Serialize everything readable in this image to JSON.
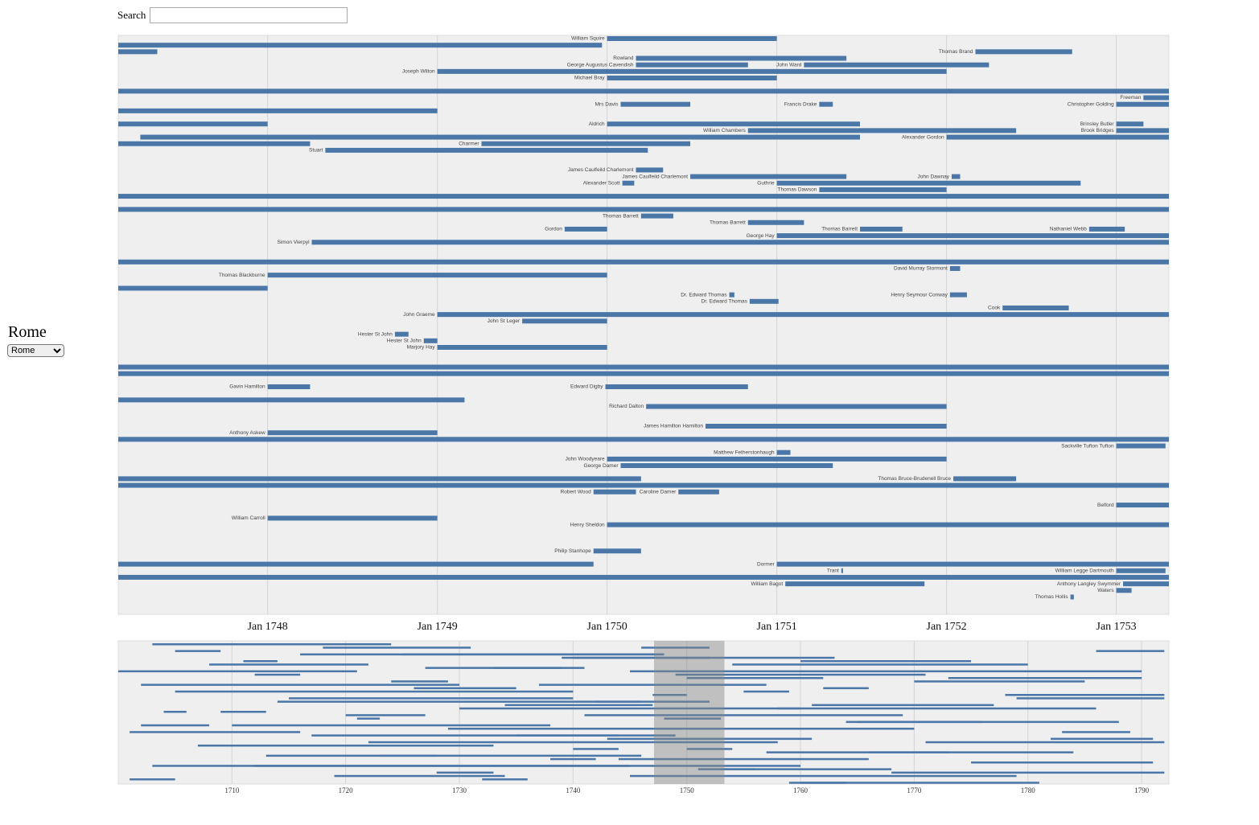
{
  "search_label": "Search",
  "location": {
    "title": "Rome",
    "selected": "Rome"
  },
  "timeline": {
    "color": "#4a77a8",
    "xlim": [
      1747.12,
      1753.31
    ],
    "xticks": [
      {
        "value": 1748,
        "label": "Jan 1748"
      },
      {
        "value": 1749,
        "label": "Jan 1749"
      },
      {
        "value": 1750,
        "label": "Jan 1750"
      },
      {
        "value": 1751,
        "label": "Jan 1751"
      },
      {
        "value": 1752,
        "label": "Jan 1752"
      },
      {
        "value": 1753,
        "label": "Jan 1753"
      }
    ],
    "rows": [
      [
        {
          "label": "William Squire",
          "start": 1750.0,
          "end": 1751.0
        }
      ],
      [
        {
          "start": 1747.12,
          "end": 1749.97
        }
      ],
      [
        {
          "start": 1747.12,
          "end": 1747.35
        },
        {
          "label": "Thomas Brand",
          "start": 1752.17,
          "end": 1752.74
        }
      ],
      [
        {
          "label": "Rowland",
          "start": 1750.17,
          "end": 1751.41
        }
      ],
      [
        {
          "label": "George Augustus Cavendish",
          "start": 1750.17,
          "end": 1750.83
        },
        {
          "label": "John Ward",
          "start": 1751.16,
          "end": 1752.25
        }
      ],
      [
        {
          "label": "Joseph Wilton",
          "start": 1749.0,
          "end": 1752.0
        }
      ],
      [
        {
          "label": "Michael Bray",
          "start": 1750.0,
          "end": 1751.0
        }
      ],
      [],
      [
        {
          "start": 1747.12,
          "end": 1753.31
        }
      ],
      [
        {
          "label": "Freeman",
          "start": 1753.16,
          "end": 1753.31
        }
      ],
      [
        {
          "label": "Mrs Davis",
          "start": 1750.08,
          "end": 1750.49
        },
        {
          "label": "Francis Drake",
          "start": 1751.25,
          "end": 1751.33
        },
        {
          "label": "Christopher Golding",
          "start": 1753.0,
          "end": 1753.31
        }
      ],
      [
        {
          "start": 1747.12,
          "end": 1749.0
        }
      ],
      [],
      [
        {
          "start": 1747.12,
          "end": 1748.0
        },
        {
          "label": "Aldrich",
          "start": 1750.0,
          "end": 1751.49
        },
        {
          "label": "Brinsley Butler",
          "start": 1753.0,
          "end": 1753.16
        }
      ],
      [
        {
          "label": "William Chambers",
          "start": 1750.83,
          "end": 1752.41
        },
        {
          "label": "Brook Bridges",
          "start": 1753.0,
          "end": 1753.31
        }
      ],
      [
        {
          "start": 1747.25,
          "end": 1751.49
        },
        {
          "label": "Alexander Gordon",
          "start": 1752.0,
          "end": 1753.31
        }
      ],
      [
        {
          "start": 1747.12,
          "end": 1748.25
        },
        {
          "label": "Charmer",
          "start": 1749.26,
          "end": 1750.49
        }
      ],
      [
        {
          "label": "Stuart",
          "start": 1748.34,
          "end": 1750.24
        }
      ],
      [],
      [],
      [
        {
          "label": "James Caulfeild Charlemont",
          "start": 1750.17,
          "end": 1750.33
        }
      ],
      [
        {
          "label": "James Caulfeild Charlemont",
          "start": 1750.49,
          "end": 1751.41
        },
        {
          "label": "John Dawnay",
          "start": 1752.03,
          "end": 1752.08
        }
      ],
      [
        {
          "label": "Alexander Scott",
          "start": 1750.09,
          "end": 1750.16
        },
        {
          "label": "Guthrie",
          "start": 1751.0,
          "end": 1752.79
        }
      ],
      [
        {
          "label": "Thomas Dawson",
          "start": 1751.25,
          "end": 1752.0
        }
      ],
      [
        {
          "start": 1747.12,
          "end": 1753.31
        }
      ],
      [],
      [
        {
          "start": 1747.12,
          "end": 1753.31
        }
      ],
      [
        {
          "label": "Thomas Barrett",
          "start": 1750.2,
          "end": 1750.39
        }
      ],
      [
        {
          "label": "Thomas Barrett",
          "start": 1750.83,
          "end": 1751.16
        }
      ],
      [
        {
          "label": "Gordon",
          "start": 1749.75,
          "end": 1750.0
        },
        {
          "label": "Thomas Barrett",
          "start": 1751.49,
          "end": 1751.74
        },
        {
          "label": "Nathaniel Webb",
          "start": 1752.84,
          "end": 1753.05
        }
      ],
      [
        {
          "label": "George Hay",
          "start": 1751.0,
          "end": 1753.31
        }
      ],
      [
        {
          "label": "Simon Vierpyl",
          "start": 1748.26,
          "end": 1753.31
        }
      ],
      [],
      [],
      [
        {
          "start": 1747.12,
          "end": 1753.31
        }
      ],
      [
        {
          "label": "David Murray Stormont",
          "start": 1752.02,
          "end": 1752.08
        }
      ],
      [
        {
          "label": "Thomas Blackburne",
          "start": 1748.0,
          "end": 1750.0
        }
      ],
      [],
      [
        {
          "start": 1747.12,
          "end": 1748.0
        }
      ],
      [
        {
          "label": "Dr. Edward Thomas",
          "start": 1750.72,
          "end": 1750.75
        },
        {
          "label": "Henry Seymour Conway",
          "start": 1752.02,
          "end": 1752.12
        }
      ],
      [
        {
          "label": "Dr. Edward Thomas",
          "start": 1750.84,
          "end": 1751.01
        }
      ],
      [
        {
          "label": "Cook",
          "start": 1752.33,
          "end": 1752.72
        }
      ],
      [
        {
          "label": "John Graeme",
          "start": 1749.0,
          "end": 1753.31
        }
      ],
      [
        {
          "label": "John St Leger",
          "start": 1749.5,
          "end": 1750.0
        }
      ],
      [],
      [
        {
          "label": "Hester St John",
          "start": 1748.75,
          "end": 1748.83
        }
      ],
      [
        {
          "label": "Hester St John",
          "start": 1748.92,
          "end": 1749.0
        }
      ],
      [
        {
          "label": "Marjory Hay",
          "start": 1749.0,
          "end": 1750.0
        }
      ],
      [],
      [],
      [
        {
          "start": 1747.12,
          "end": 1753.31
        }
      ],
      [
        {
          "start": 1747.12,
          "end": 1753.31
        }
      ],
      [],
      [
        {
          "label": "Gavin Hamilton",
          "start": 1748.0,
          "end": 1748.25
        },
        {
          "label": "Edward Digby",
          "start": 1749.99,
          "end": 1750.83
        }
      ],
      [],
      [
        {
          "start": 1747.12,
          "end": 1749.16
        }
      ],
      [
        {
          "label": "Richard Dalton",
          "start": 1750.23,
          "end": 1752.0
        }
      ],
      [],
      [],
      [
        {
          "label": "James Hamilton Hamilton",
          "start": 1750.58,
          "end": 1752.0
        }
      ],
      [
        {
          "label": "Anthony Askew",
          "start": 1748.0,
          "end": 1749.0
        }
      ],
      [
        {
          "start": 1747.12,
          "end": 1753.31
        }
      ],
      [
        {
          "label": "Sackville Tufton Tufton",
          "start": 1753.0,
          "end": 1753.29
        }
      ],
      [
        {
          "label": "Matthew Fetherstonhaugh",
          "start": 1751.0,
          "end": 1751.08
        }
      ],
      [
        {
          "label": "John Woodyeare",
          "start": 1750.0,
          "end": 1752.0
        }
      ],
      [
        {
          "label": "George Damer",
          "start": 1750.08,
          "end": 1751.33
        }
      ],
      [],
      [
        {
          "start": 1747.12,
          "end": 1750.2
        },
        {
          "label": "Thomas Bruce-Brudenell Bruce",
          "start": 1752.04,
          "end": 1752.41
        }
      ],
      [
        {
          "start": 1747.12,
          "end": 1753.31
        }
      ],
      [
        {
          "label": "Robert Wood",
          "start": 1749.92,
          "end": 1750.17
        },
        {
          "label": "Caroline Damer",
          "start": 1750.42,
          "end": 1750.66
        }
      ],
      [],
      [
        {
          "label": "Belford",
          "start": 1753.0,
          "end": 1753.31
        }
      ],
      [],
      [
        {
          "label": "William Carroll",
          "start": 1748.0,
          "end": 1749.0
        }
      ],
      [
        {
          "label": "Henry Sheldon",
          "start": 1750.0,
          "end": 1753.31
        }
      ],
      [],
      [],
      [],
      [
        {
          "label": "Philip Stanhope",
          "start": 1749.92,
          "end": 1750.2
        }
      ],
      [],
      [
        {
          "start": 1747.12,
          "end": 1749.92
        },
        {
          "label": "Dormer",
          "start": 1751.0,
          "end": 1753.31
        }
      ],
      [
        {
          "label": "Trant",
          "start": 1751.38,
          "end": 1751.39
        },
        {
          "label": "William Legge Dartmouth",
          "start": 1753.0,
          "end": 1753.29
        }
      ],
      [
        {
          "start": 1747.12,
          "end": 1753.31
        }
      ],
      [
        {
          "label": "William Bagot",
          "start": 1751.05,
          "end": 1751.87
        },
        {
          "label": "Anthony Langley Swymmer",
          "start": 1753.04,
          "end": 1753.31
        }
      ],
      [
        {
          "label": "Waters",
          "start": 1753.0,
          "end": 1753.09
        }
      ],
      [
        {
          "label": "Thomas Hollis",
          "start": 1752.73,
          "end": 1752.75
        }
      ]
    ]
  },
  "overview": {
    "xlim": [
      1700,
      1792.4
    ],
    "xticks": [
      1710,
      1720,
      1730,
      1740,
      1750,
      1760,
      1770,
      1780,
      1790
    ],
    "spans": [
      [
        1703,
        1712
      ],
      [
        1718,
        1731
      ],
      [
        1705,
        1709
      ],
      [
        1725,
        1748
      ],
      [
        1740,
        1752
      ],
      [
        1760,
        1775
      ],
      [
        1708,
        1722
      ],
      [
        1733,
        1741
      ],
      [
        1745,
        1790
      ],
      [
        1712,
        1716
      ],
      [
        1750,
        1762
      ],
      [
        1770,
        1785
      ],
      [
        1702,
        1730
      ],
      [
        1726,
        1735
      ],
      [
        1755,
        1759
      ],
      [
        1778,
        1792
      ],
      [
        1715,
        1740
      ],
      [
        1742,
        1746
      ],
      [
        1761,
        1777
      ],
      [
        1730,
        1760
      ],
      [
        1704,
        1706
      ],
      [
        1720,
        1727
      ],
      [
        1748,
        1753
      ],
      [
        1765,
        1788
      ],
      [
        1710,
        1738
      ],
      [
        1752,
        1770
      ],
      [
        1701,
        1716
      ],
      [
        1735,
        1749
      ],
      [
        1782,
        1791
      ],
      [
        1722,
        1758
      ],
      [
        1707,
        1719
      ],
      [
        1740,
        1744
      ],
      [
        1757,
        1773
      ],
      [
        1713,
        1728
      ],
      [
        1744,
        1766
      ],
      [
        1775,
        1783
      ],
      [
        1703,
        1745
      ],
      [
        1751,
        1756
      ],
      [
        1768,
        1792
      ],
      [
        1719,
        1734
      ],
      [
        1732,
        1736
      ],
      [
        1760,
        1781
      ],
      [
        1706,
        1724
      ],
      [
        1746,
        1752
      ],
      [
        1786,
        1792
      ],
      [
        1716,
        1748
      ],
      [
        1739,
        1763
      ],
      [
        1711,
        1714
      ],
      [
        1754,
        1780
      ],
      [
        1727,
        1739
      ],
      [
        1700,
        1721
      ],
      [
        1749,
        1771
      ],
      [
        1773,
        1790
      ],
      [
        1724,
        1729
      ],
      [
        1737,
        1757
      ],
      [
        1762,
        1766
      ],
      [
        1705,
        1740
      ],
      [
        1747,
        1750
      ],
      [
        1779,
        1792
      ],
      [
        1714,
        1752
      ],
      [
        1734,
        1747
      ],
      [
        1758,
        1786
      ],
      [
        1709,
        1713
      ],
      [
        1741,
        1769
      ],
      [
        1721,
        1723
      ],
      [
        1764,
        1776
      ],
      [
        1702,
        1708
      ],
      [
        1729,
        1755
      ],
      [
        1783,
        1789
      ],
      [
        1717,
        1744
      ],
      [
        1743,
        1761
      ],
      [
        1771,
        1792
      ],
      [
        1708,
        1733
      ],
      [
        1750,
        1754
      ],
      [
        1766,
        1784
      ],
      [
        1723,
        1746
      ],
      [
        1738,
        1742
      ],
      [
        1776,
        1791
      ],
      [
        1712,
        1760
      ],
      [
        1753,
        1768
      ],
      [
        1728,
        1733
      ],
      [
        1745,
        1779
      ],
      [
        1701,
        1705
      ],
      [
        1759,
        1764
      ]
    ]
  }
}
